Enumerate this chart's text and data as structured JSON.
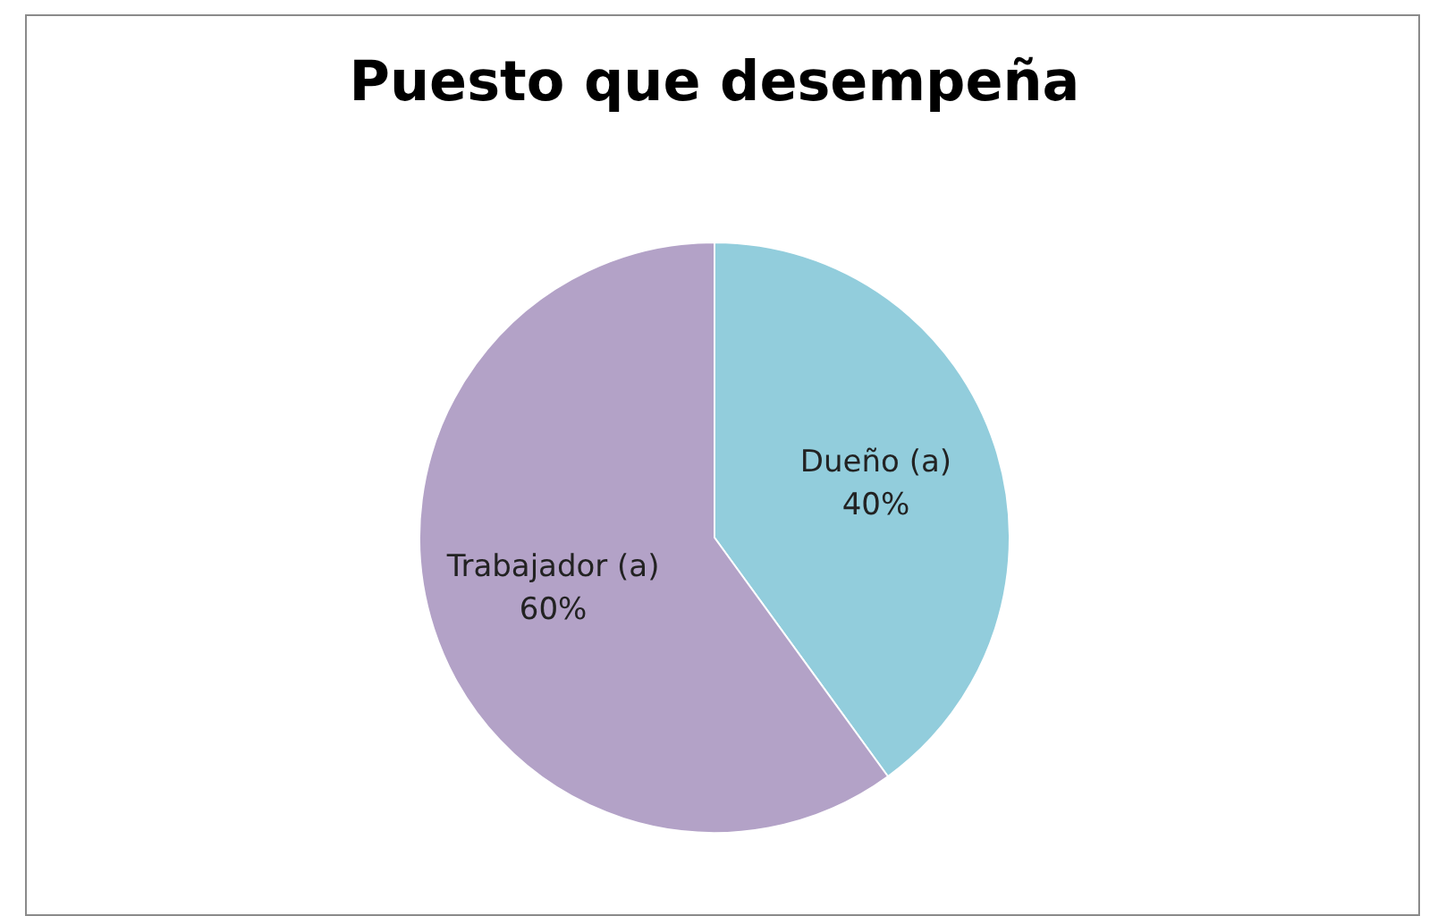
{
  "chart_data": {
    "type": "pie",
    "title": "Puesto que desempeña",
    "categories": [
      "Dueño (a)",
      "Trabajador (a)"
    ],
    "values": [
      40,
      60
    ],
    "colors": [
      "#92cddc",
      "#b3a2c7"
    ],
    "value_labels": [
      "40%",
      "60%"
    ],
    "legend": false
  }
}
